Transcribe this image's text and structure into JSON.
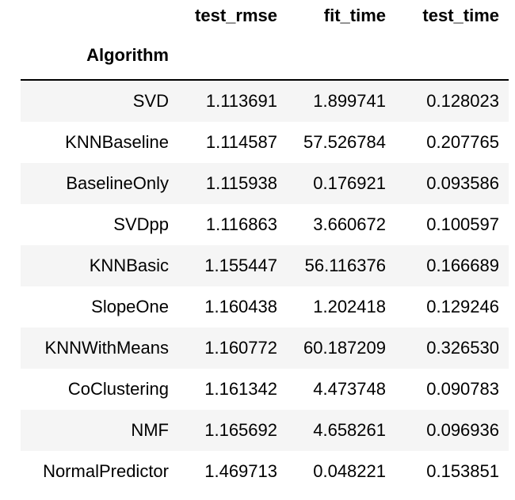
{
  "table": {
    "columns": [
      "test_rmse",
      "fit_time",
      "test_time"
    ],
    "index_name": "Algorithm",
    "rows": [
      {
        "algorithm": "SVD",
        "test_rmse": "1.113691",
        "fit_time": "1.899741",
        "test_time": "0.128023"
      },
      {
        "algorithm": "KNNBaseline",
        "test_rmse": "1.114587",
        "fit_time": "57.526784",
        "test_time": "0.207765"
      },
      {
        "algorithm": "BaselineOnly",
        "test_rmse": "1.115938",
        "fit_time": "0.176921",
        "test_time": "0.093586"
      },
      {
        "algorithm": "SVDpp",
        "test_rmse": "1.116863",
        "fit_time": "3.660672",
        "test_time": "0.100597"
      },
      {
        "algorithm": "KNNBasic",
        "test_rmse": "1.155447",
        "fit_time": "56.116376",
        "test_time": "0.166689"
      },
      {
        "algorithm": "SlopeOne",
        "test_rmse": "1.160438",
        "fit_time": "1.202418",
        "test_time": "0.129246"
      },
      {
        "algorithm": "KNNWithMeans",
        "test_rmse": "1.160772",
        "fit_time": "60.187209",
        "test_time": "0.326530"
      },
      {
        "algorithm": "CoClustering",
        "test_rmse": "1.161342",
        "fit_time": "4.473748",
        "test_time": "0.090783"
      },
      {
        "algorithm": "NMF",
        "test_rmse": "1.165692",
        "fit_time": "4.658261",
        "test_time": "0.096936"
      },
      {
        "algorithm": "NormalPredictor",
        "test_rmse": "1.469713",
        "fit_time": "0.048221",
        "test_time": "0.153851"
      }
    ]
  },
  "colors": {
    "stripe": "#f5f5f5",
    "background": "#ffffff",
    "text": "#000000",
    "rule": "#000000"
  }
}
